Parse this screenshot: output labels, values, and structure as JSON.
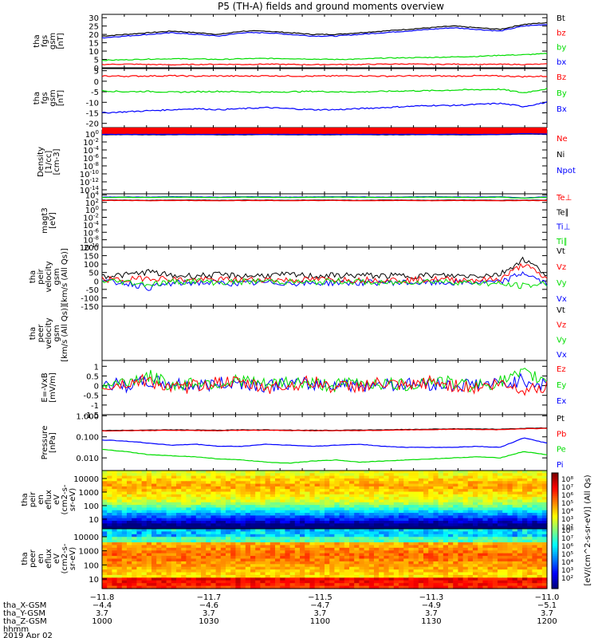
{
  "title": "P5 (TH-A) fields and ground moments overview",
  "colors": {
    "black": "#000000",
    "red": "#ff0000",
    "green": "#00dd00",
    "blue": "#0000ff"
  },
  "chart_data": [
    {
      "type": "line",
      "ylabel_lines": [
        "tha",
        "fgs",
        "gsm",
        "[nT]"
      ],
      "ylim": [
        0,
        32
      ],
      "yticks": [
        0,
        5,
        10,
        15,
        20,
        25,
        30
      ],
      "legend": [
        {
          "label": "Bt",
          "color": "#000000"
        },
        {
          "label": "bz",
          "color": "#ff0000"
        },
        {
          "label": "by",
          "color": "#00dd00"
        },
        {
          "label": "bx",
          "color": "#0000ff"
        }
      ],
      "series": [
        {
          "color": "#000000",
          "values": [
            19,
            20,
            21,
            22,
            21,
            20,
            22,
            22,
            21,
            20,
            20,
            21,
            22,
            23,
            24,
            25,
            24,
            23,
            26,
            27
          ]
        },
        {
          "color": "#0000ff",
          "values": [
            18,
            19,
            20,
            21,
            20,
            19,
            21,
            21,
            20,
            19,
            19,
            20,
            21,
            22,
            23,
            24,
            23,
            22,
            25,
            26
          ]
        },
        {
          "color": "#00dd00",
          "values": [
            4.5,
            4.8,
            5.2,
            5.4,
            5.3,
            5.0,
            5.4,
            5.6,
            5.5,
            5.2,
            5.0,
            5.2,
            5.8,
            6.0,
            6.2,
            6.5,
            6.8,
            7.5,
            7.8,
            8.5
          ]
        },
        {
          "color": "#ff0000",
          "values": [
            2.0,
            2.2,
            2.0,
            1.8,
            2.0,
            2.1,
            2.0,
            2.2,
            2.0,
            1.9,
            2.0,
            2.0,
            2.2,
            2.3,
            2.0,
            2.2,
            2.0,
            2.1,
            2.0,
            2.2
          ]
        }
      ]
    },
    {
      "type": "line",
      "ylabel_lines": [
        "tha",
        "fgs",
        "gsm",
        "[nT]"
      ],
      "ylim": [
        -22,
        6
      ],
      "yticks": [
        -20,
        -15,
        -10,
        -5,
        0,
        5
      ],
      "legend": [
        {
          "label": "Bz",
          "color": "#ff0000"
        },
        {
          "label": "By",
          "color": "#00dd00"
        },
        {
          "label": "Bx",
          "color": "#0000ff"
        }
      ],
      "series": [
        {
          "color": "#ff0000",
          "values": [
            2.5,
            2.4,
            2.5,
            2.6,
            2.4,
            2.5,
            2.4,
            2.6,
            2.5,
            2.4,
            2.5,
            2.6,
            2.4,
            2.5,
            2.5,
            2.4,
            2.6,
            2.5,
            2.2,
            2.4
          ]
        },
        {
          "color": "#00dd00",
          "values": [
            -4.5,
            -5,
            -4.8,
            -5.2,
            -5,
            -4.8,
            -5,
            -5.2,
            -5,
            -4.8,
            -5,
            -5.1,
            -4.8,
            -4.6,
            -4.5,
            -4.2,
            -4.0,
            -3.8,
            -5.5,
            -3.5
          ]
        },
        {
          "color": "#0000ff",
          "values": [
            -15,
            -14.5,
            -14,
            -13.5,
            -13,
            -13.5,
            -13,
            -12.5,
            -13,
            -13.5,
            -13.5,
            -13,
            -12.5,
            -12,
            -11.5,
            -11.5,
            -11,
            -10.5,
            -12,
            -10
          ]
        }
      ]
    },
    {
      "type": "line",
      "ylabel_lines": [
        "Density",
        "[1/cc]",
        "[cm-3]"
      ],
      "ylog": true,
      "ylim_exp": [
        -15,
        1
      ],
      "yticks_exp": [
        -14,
        -12,
        -10,
        -8,
        -6,
        -4,
        -2,
        0
      ],
      "legend": [
        {
          "label": "Ne",
          "color": "#ff0000"
        },
        {
          "label": "Ni",
          "color": "#000000"
        },
        {
          "label": "Npot",
          "color": "#0000ff"
        }
      ],
      "series": [
        {
          "color": "#ff0000",
          "values": [
            0.0,
            0.02,
            0.01,
            0.0,
            0.02,
            0.01,
            0.0,
            0.02,
            0.01,
            0.0,
            0.01,
            0.02,
            0.0,
            0.01,
            0.02,
            0.0,
            0.01,
            0.02,
            0.1,
            0.05
          ]
        },
        {
          "color": "#000000",
          "values": [
            -0.2,
            -0.15,
            -0.2,
            -0.2,
            -0.15,
            -0.2,
            -0.2,
            -0.15,
            -0.2,
            -0.2,
            -0.2,
            -0.15,
            -0.2,
            -0.2,
            -0.15,
            -0.2,
            -0.2,
            -0.15,
            0.0,
            -0.1
          ]
        },
        {
          "color": "#0000ff",
          "values": [
            -0.1,
            -0.1,
            -0.1,
            -0.1,
            -0.1,
            -0.1,
            -0.1,
            -0.1,
            -0.1,
            -0.1,
            -0.1,
            -0.1,
            -0.1,
            -0.1,
            -0.1,
            -0.1,
            -0.1,
            -0.1,
            0.1,
            0.0
          ]
        }
      ]
    },
    {
      "type": "line",
      "ylabel_lines": [
        "magt3",
        "[eV]"
      ],
      "ylog": true,
      "ylim_exp": [
        -10,
        4.3
      ],
      "yticks_exp": [
        -10,
        -8,
        -6,
        -4,
        -2,
        0,
        2,
        4
      ],
      "legend": [
        {
          "label": "Te⊥",
          "color": "#ff0000"
        },
        {
          "label": "Te∥",
          "color": "#000000"
        },
        {
          "label": "Ti⊥",
          "color": "#0000ff"
        },
        {
          "label": "Ti∥",
          "color": "#00dd00"
        }
      ],
      "series": [
        {
          "color": "#0000ff",
          "values": [
            3.4,
            3.45,
            3.4,
            3.5,
            3.45,
            3.4,
            3.5,
            3.45,
            3.4,
            3.45,
            3.5,
            3.45,
            3.4,
            3.45,
            3.5,
            3.45,
            3.4,
            3.5,
            3.2,
            3.5
          ]
        },
        {
          "color": "#00dd00",
          "values": [
            3.3,
            3.35,
            3.3,
            3.4,
            3.35,
            3.3,
            3.4,
            3.35,
            3.3,
            3.35,
            3.4,
            3.35,
            3.3,
            3.35,
            3.4,
            3.35,
            3.3,
            3.4,
            3.1,
            3.4
          ]
        },
        {
          "color": "#000000",
          "values": [
            2.6,
            2.6,
            2.55,
            2.6,
            2.6,
            2.55,
            2.6,
            2.6,
            2.55,
            2.6,
            2.6,
            2.55,
            2.6,
            2.6,
            2.55,
            2.6,
            2.6,
            2.55,
            2.6,
            2.6
          ]
        },
        {
          "color": "#ff0000",
          "values": [
            2.5,
            2.5,
            2.45,
            2.5,
            2.5,
            2.45,
            2.5,
            2.5,
            2.45,
            2.5,
            2.5,
            2.45,
            2.5,
            2.5,
            2.45,
            2.5,
            2.5,
            2.45,
            2.5,
            2.5
          ]
        }
      ]
    },
    {
      "type": "line",
      "ylabel_lines": [
        "tha",
        "peir",
        "velocity",
        "gsm",
        "[km/s (All Qs)]"
      ],
      "ylim": [
        -150,
        200
      ],
      "yticks": [
        -150,
        -100,
        -50,
        0,
        50,
        100,
        150,
        200
      ],
      "legend": [
        {
          "label": "Vt",
          "color": "#000000"
        },
        {
          "label": "Vz",
          "color": "#ff0000"
        },
        {
          "label": "Vy",
          "color": "#00dd00"
        },
        {
          "label": "Vx",
          "color": "#0000ff"
        }
      ],
      "series": [
        {
          "color": "#000000",
          "values": [
            30,
            35,
            55,
            30,
            32,
            35,
            30,
            33,
            36,
            30,
            32,
            34,
            30,
            31,
            33,
            30,
            32,
            40,
            130,
            40
          ]
        },
        {
          "color": "#0000ff",
          "values": [
            -5,
            -10,
            -40,
            -15,
            -10,
            -12,
            -15,
            -10,
            -12,
            -15,
            -10,
            -12,
            -8,
            -10,
            -12,
            -10,
            -8,
            -10,
            50,
            -20
          ]
        },
        {
          "color": "#ff0000",
          "values": [
            10,
            5,
            20,
            10,
            5,
            8,
            6,
            10,
            5,
            8,
            10,
            6,
            8,
            5,
            10,
            8,
            6,
            10,
            100,
            10
          ]
        },
        {
          "color": "#00dd00",
          "values": [
            0,
            -5,
            -20,
            -5,
            0,
            -10,
            -5,
            0,
            -5,
            -10,
            0,
            -5,
            -15,
            -5,
            0,
            -5,
            -10,
            -20,
            -30,
            -15
          ]
        }
      ]
    },
    {
      "type": "line",
      "ylabel_lines": [
        "tha",
        "peer",
        "velocity",
        "gsm",
        "[km/s (All Qs)]"
      ],
      "ylim": [
        -150,
        200
      ],
      "yticks": [],
      "legend": [
        {
          "label": "Vt",
          "color": "#000000"
        },
        {
          "label": "Vz",
          "color": "#ff0000"
        },
        {
          "label": "Vy",
          "color": "#00dd00"
        },
        {
          "label": "Vx",
          "color": "#0000ff"
        }
      ],
      "series": []
    },
    {
      "type": "line",
      "ylabel_lines": [
        "E=-VxB",
        "[mV/m]"
      ],
      "ylim": [
        -1.5,
        1.3
      ],
      "yticks": [
        -1.5,
        -1.0,
        -0.5,
        0.0,
        0.5,
        1.0
      ],
      "legend": [
        {
          "label": "Ez",
          "color": "#ff0000"
        },
        {
          "label": "Ey",
          "color": "#00dd00"
        },
        {
          "label": "Ex",
          "color": "#0000ff"
        }
      ],
      "series": [
        {
          "color": "#0000ff",
          "values": [
            0.1,
            0.0,
            0.2,
            0.1,
            0.0,
            0.1,
            0.15,
            0.0,
            0.1,
            0.05,
            0.1,
            0.0,
            0.1,
            0.05,
            0.1,
            0.0,
            0.1,
            0.05,
            0.3,
            0.0
          ]
        },
        {
          "color": "#00dd00",
          "values": [
            0.0,
            0.2,
            0.5,
            0.0,
            0.2,
            0.1,
            0.3,
            0.0,
            0.2,
            0.1,
            0.0,
            0.2,
            0.1,
            0.0,
            0.3,
            0.1,
            0.0,
            0.2,
            0.6,
            0.3
          ]
        },
        {
          "color": "#ff0000",
          "values": [
            -0.1,
            0.1,
            0.3,
            -0.2,
            0.0,
            0.2,
            0.1,
            -0.1,
            0.0,
            0.2,
            -0.1,
            0.0,
            0.1,
            -0.1,
            0.2,
            0.0,
            -0.1,
            0.1,
            -0.2,
            0.0
          ]
        }
      ]
    },
    {
      "type": "line",
      "ylabel_lines": [
        "Pressure",
        "[nPa]"
      ],
      "ylog": true,
      "ylim_exp": [
        -2.6,
        0.05
      ],
      "ytick_labels": [
        {
          "exp": -2,
          "label": "0.010"
        },
        {
          "exp": -1,
          "label": "0.100"
        },
        {
          "exp": 0,
          "label": "1.000"
        }
      ],
      "legend": [
        {
          "label": "Pt",
          "color": "#000000"
        },
        {
          "label": "Pb",
          "color": "#ff0000"
        },
        {
          "label": "Pe",
          "color": "#00dd00"
        },
        {
          "label": "Pi",
          "color": "#0000ff"
        }
      ],
      "series": [
        {
          "color": "#000000",
          "values": [
            -0.7,
            -0.69,
            -0.68,
            -0.67,
            -0.68,
            -0.69,
            -0.67,
            -0.67,
            -0.68,
            -0.69,
            -0.69,
            -0.68,
            -0.67,
            -0.65,
            -0.64,
            -0.62,
            -0.63,
            -0.64,
            -0.6,
            -0.58
          ]
        },
        {
          "color": "#ff0000",
          "values": [
            -0.72,
            -0.71,
            -0.7,
            -0.69,
            -0.7,
            -0.71,
            -0.69,
            -0.69,
            -0.7,
            -0.71,
            -0.71,
            -0.7,
            -0.69,
            -0.67,
            -0.66,
            -0.64,
            -0.65,
            -0.66,
            -0.62,
            -0.6
          ]
        },
        {
          "color": "#0000ff",
          "values": [
            -1.15,
            -1.2,
            -1.3,
            -1.4,
            -1.35,
            -1.45,
            -1.45,
            -1.35,
            -1.4,
            -1.45,
            -1.4,
            -1.35,
            -1.45,
            -1.5,
            -1.5,
            -1.5,
            -1.45,
            -1.5,
            -1.05,
            -1.3
          ]
        },
        {
          "color": "#00dd00",
          "values": [
            -1.6,
            -1.7,
            -1.85,
            -1.9,
            -1.95,
            -2.05,
            -2.1,
            -2.2,
            -2.25,
            -2.15,
            -2.1,
            -2.2,
            -2.15,
            -2.1,
            -2.05,
            -2.0,
            -1.95,
            -2.0,
            -1.7,
            -1.85
          ]
        }
      ]
    },
    {
      "type": "heatmap",
      "ylabel_lines": [
        "tha",
        "peir",
        "en",
        "eflux",
        "eV",
        "(cm2-s-",
        "sr-eV)"
      ],
      "yticks": [
        "10",
        "100",
        "1000",
        "10000"
      ]
    },
    {
      "type": "heatmap",
      "ylabel_lines": [
        "tha",
        "peer",
        "en",
        "eflux",
        "eV",
        "(cm2-s-",
        "sr-eV)"
      ],
      "yticks": [
        "10",
        "100",
        "1000",
        "10000"
      ]
    }
  ],
  "colorbar": {
    "label": "[eV/(cm^2-s-sr-eV)] (All Qs)",
    "top_ticks": [
      "10⁸",
      "10⁷",
      "10⁶",
      "10⁵",
      "10⁴",
      "10³",
      "10²"
    ],
    "bottom_ticks": [
      "10⁸",
      "10⁷",
      "10⁶",
      "10⁵",
      "10⁴",
      "10³",
      "10²"
    ]
  },
  "xaxis": {
    "ticks": [
      "−11.8",
      "−11.7",
      "−11.5",
      "−11.3",
      "−11.0"
    ]
  },
  "ephemeris": {
    "rows": [
      {
        "label": "tha_X-GSM",
        "values": [
          "−4.4",
          "−4.6",
          "−4.7",
          "−4.9",
          "−5.1"
        ]
      },
      {
        "label": "tha_Y-GSM",
        "values": [
          "3.7",
          "3.7",
          "3.7",
          "3.7",
          "3.7"
        ]
      },
      {
        "label": "tha_Z-GSM",
        "values": [
          "1000",
          "1030",
          "1100",
          "1130",
          "1200"
        ]
      },
      {
        "label": "hhmm",
        "values": []
      }
    ],
    "date": "2019 Apr 02"
  }
}
